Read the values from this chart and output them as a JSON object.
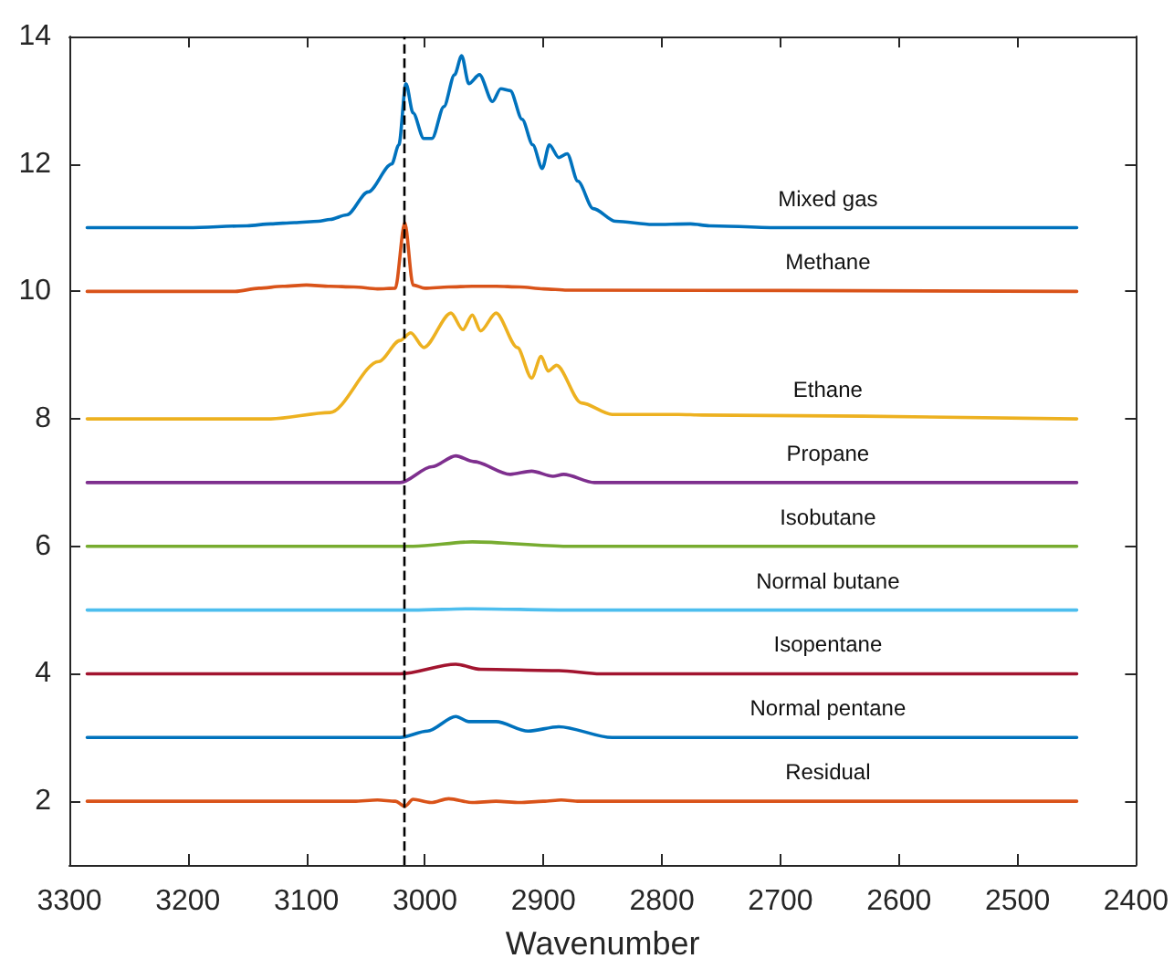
{
  "chart_data": {
    "type": "line",
    "xlabel": "Wavenumber",
    "xlim": [
      3300,
      2400
    ],
    "xticks": [
      3300,
      3200,
      3100,
      3000,
      2900,
      2800,
      2700,
      2600,
      2500,
      2400
    ],
    "ylim": [
      1,
      14
    ],
    "yticks": [
      2,
      4,
      6,
      8,
      10,
      12,
      14
    ],
    "grid": false,
    "legend": false,
    "marker": "none",
    "line_style": "solid",
    "ref_lines": [
      {
        "axis": "x",
        "value": 3017,
        "label": null,
        "color": "#000000",
        "line_style": "dashed"
      }
    ],
    "series": [
      {
        "name": "Mixed gas",
        "color": "#0072bd",
        "x": [
          3285,
          3200,
          3150,
          3130,
          3110,
          3090,
          3080,
          3066,
          3048,
          3028,
          3022,
          3016,
          3010,
          3001,
          2994,
          2984,
          2975,
          2969,
          2963,
          2954,
          2943,
          2936,
          2928,
          2918,
          2909,
          2901,
          2895,
          2887,
          2880,
          2871,
          2858,
          2839,
          2808,
          2776,
          2760,
          2700,
          2600,
          2450
        ],
        "values": [
          11.0,
          11.0,
          11.03,
          11.06,
          11.08,
          11.1,
          11.13,
          11.2,
          11.56,
          12.0,
          12.3,
          13.26,
          12.8,
          12.4,
          12.4,
          12.9,
          13.4,
          13.7,
          13.26,
          13.4,
          12.98,
          13.18,
          13.15,
          12.7,
          12.3,
          11.93,
          12.3,
          12.1,
          12.16,
          11.73,
          11.3,
          11.1,
          11.05,
          11.06,
          11.03,
          11.0,
          11.0,
          11.0
        ]
      },
      {
        "name": "Methane",
        "color": "#d95319",
        "x": [
          3285,
          3160,
          3140,
          3120,
          3100,
          3080,
          3060,
          3040,
          3025,
          3017,
          3010,
          3000,
          2980,
          2960,
          2940,
          2920,
          2900,
          2880,
          2450
        ],
        "values": [
          10.0,
          10.0,
          10.05,
          10.08,
          10.1,
          10.08,
          10.07,
          10.04,
          10.05,
          11.08,
          10.1,
          10.05,
          10.07,
          10.08,
          10.08,
          10.07,
          10.04,
          10.02,
          10.0
        ]
      },
      {
        "name": "Ethane",
        "color": "#edb120",
        "x": [
          3285,
          3130,
          3080,
          3039,
          3021,
          3012,
          3001,
          2978,
          2968,
          2960,
          2953,
          2940,
          2922,
          2910,
          2902,
          2896,
          2889,
          2868,
          2842,
          2786,
          2766,
          2450
        ],
        "values": [
          8.0,
          8.0,
          8.1,
          8.9,
          9.23,
          9.35,
          9.12,
          9.66,
          9.4,
          9.63,
          9.38,
          9.66,
          9.12,
          8.64,
          8.98,
          8.75,
          8.84,
          8.25,
          8.07,
          8.07,
          8.06,
          8.0
        ]
      },
      {
        "name": "Propane",
        "color": "#7e2f8e",
        "x": [
          3285,
          3021,
          2994,
          2974,
          2959,
          2928,
          2910,
          2892,
          2883,
          2857,
          2450
        ],
        "values": [
          7.0,
          7.0,
          7.25,
          7.42,
          7.33,
          7.13,
          7.18,
          7.1,
          7.13,
          7.0,
          7.0
        ]
      },
      {
        "name": "Isobutane",
        "color": "#77ac30",
        "x": [
          3285,
          3010,
          2960,
          2880,
          2450
        ],
        "values": [
          6.0,
          6.0,
          6.07,
          6.0,
          6.0
        ]
      },
      {
        "name": "Normal butane",
        "color": "#4dbeee",
        "x": [
          3285,
          3010,
          2960,
          2880,
          2450
        ],
        "values": [
          5.0,
          5.0,
          5.02,
          5.0,
          5.0
        ]
      },
      {
        "name": "Isopentane",
        "color": "#a2142f",
        "x": [
          3285,
          3021,
          2974,
          2953,
          2887,
          2852,
          2450
        ],
        "values": [
          4.0,
          4.0,
          4.15,
          4.07,
          4.05,
          4.0,
          4.0
        ]
      },
      {
        "name": "Normal pentane",
        "color": "#0072bd",
        "x": [
          3285,
          3021,
          2998,
          2974,
          2963,
          2940,
          2913,
          2887,
          2842,
          2450
        ],
        "values": [
          3.0,
          3.0,
          3.1,
          3.33,
          3.25,
          3.25,
          3.1,
          3.17,
          3.0,
          3.0
        ]
      },
      {
        "name": "Residual",
        "color": "#d95319",
        "x": [
          3285,
          3060,
          3040,
          3025,
          3017,
          3010,
          2995,
          2980,
          2960,
          2940,
          2920,
          2900,
          2885,
          2870,
          2450
        ],
        "values": [
          2.0,
          2.0,
          2.02,
          2.0,
          1.92,
          2.03,
          1.98,
          2.04,
          1.98,
          2.0,
          1.98,
          2.0,
          2.02,
          2.0,
          2.0
        ]
      }
    ]
  }
}
